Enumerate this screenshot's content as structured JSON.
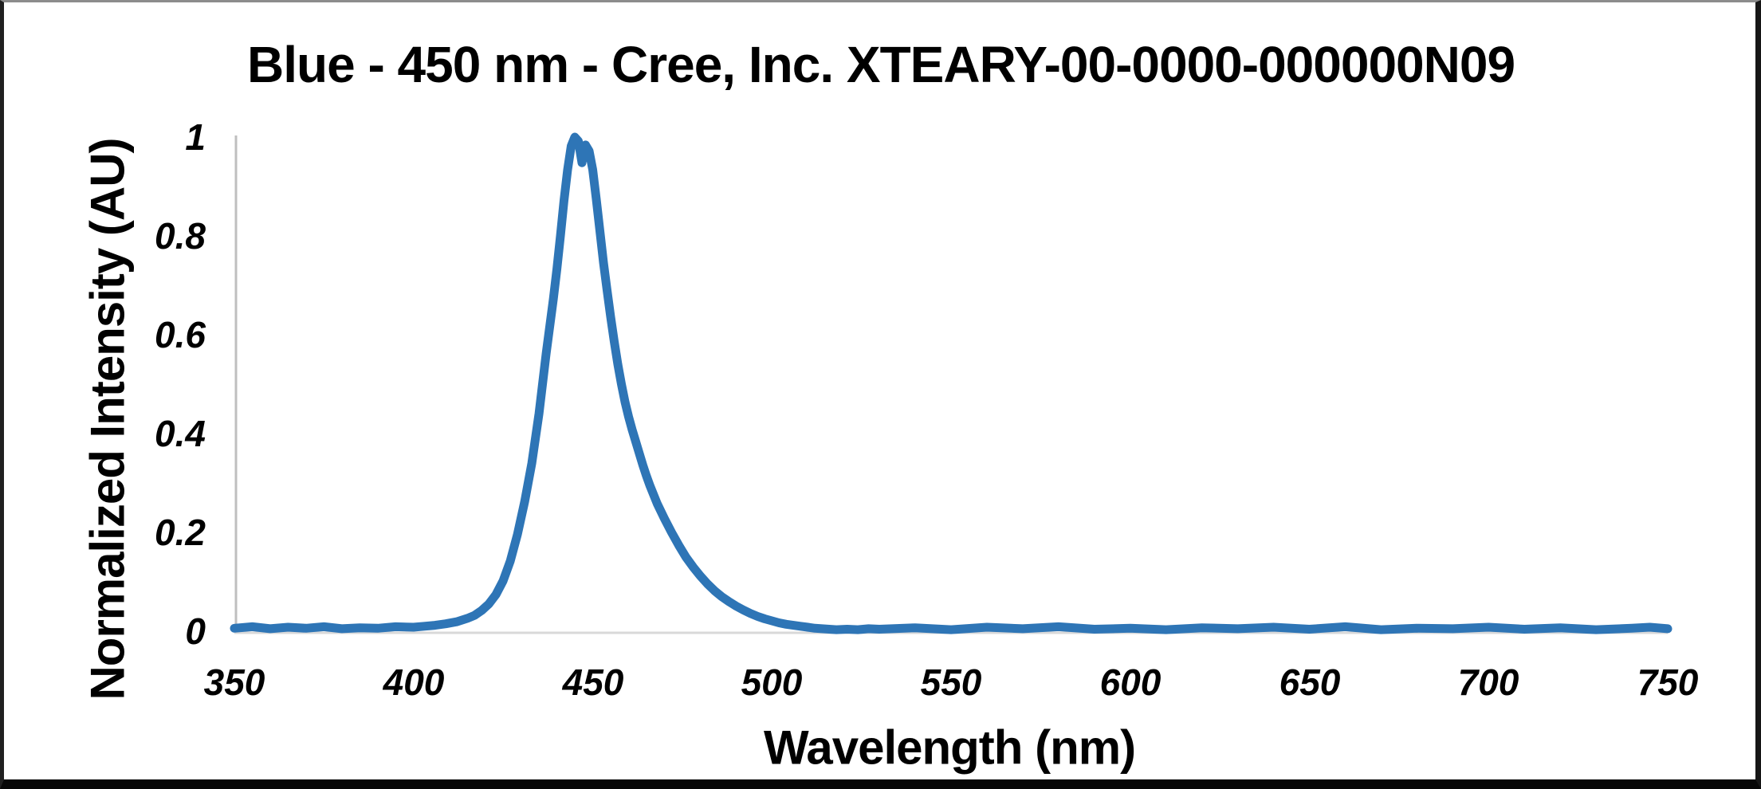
{
  "chart_data": {
    "type": "line",
    "title": "Blue - 450 nm - Cree, Inc. XTEARY-00-0000-000000N09",
    "xlabel": "Wavelength (nm)",
    "ylabel": "Normalized Intensity (AU)",
    "xlim": [
      350,
      750
    ],
    "ylim": [
      0,
      1
    ],
    "xticks": [
      350,
      400,
      450,
      500,
      550,
      600,
      650,
      700,
      750
    ],
    "yticks": [
      0,
      0.2,
      0.4,
      0.6,
      0.8,
      1
    ],
    "ytick_labels": [
      "0",
      "0.2",
      "0.4",
      "0.6",
      "0.8",
      "1"
    ],
    "grid": false,
    "legend": false,
    "peak_wavelength_nm": 445,
    "series": [
      {
        "name": "Blue - 450 nm",
        "color": "#2E75B6",
        "points": [
          [
            350,
            0.006
          ],
          [
            355,
            0.009
          ],
          [
            360,
            0.005
          ],
          [
            365,
            0.008
          ],
          [
            370,
            0.006
          ],
          [
            375,
            0.009
          ],
          [
            380,
            0.005
          ],
          [
            385,
            0.007
          ],
          [
            390,
            0.006
          ],
          [
            395,
            0.009
          ],
          [
            400,
            0.008
          ],
          [
            403,
            0.01
          ],
          [
            406,
            0.012
          ],
          [
            409,
            0.015
          ],
          [
            412,
            0.019
          ],
          [
            415,
            0.026
          ],
          [
            417,
            0.032
          ],
          [
            419,
            0.042
          ],
          [
            421,
            0.055
          ],
          [
            423,
            0.074
          ],
          [
            425,
            0.102
          ],
          [
            427,
            0.142
          ],
          [
            429,
            0.196
          ],
          [
            431,
            0.262
          ],
          [
            433,
            0.34
          ],
          [
            435,
            0.44
          ],
          [
            437,
            0.562
          ],
          [
            439,
            0.672
          ],
          [
            440,
            0.732
          ],
          [
            441,
            0.8
          ],
          [
            442,
            0.872
          ],
          [
            443,
            0.934
          ],
          [
            444,
            0.982
          ],
          [
            445,
            1.0
          ],
          [
            446,
            0.992
          ],
          [
            447,
            0.948
          ],
          [
            448,
            0.984
          ],
          [
            449,
            0.972
          ],
          [
            450,
            0.934
          ],
          [
            451,
            0.874
          ],
          [
            452,
            0.81
          ],
          [
            453,
            0.746
          ],
          [
            454,
            0.69
          ],
          [
            455,
            0.636
          ],
          [
            456,
            0.586
          ],
          [
            457,
            0.54
          ],
          [
            458,
            0.5
          ],
          [
            459,
            0.464
          ],
          [
            460,
            0.434
          ],
          [
            461,
            0.408
          ],
          [
            462,
            0.384
          ],
          [
            463,
            0.36
          ],
          [
            464,
            0.336
          ],
          [
            465,
            0.314
          ],
          [
            466,
            0.294
          ],
          [
            468,
            0.258
          ],
          [
            470,
            0.228
          ],
          [
            472,
            0.2
          ],
          [
            474,
            0.174
          ],
          [
            476,
            0.15
          ],
          [
            478,
            0.13
          ],
          [
            480,
            0.112
          ],
          [
            482,
            0.096
          ],
          [
            484,
            0.082
          ],
          [
            486,
            0.07
          ],
          [
            488,
            0.06
          ],
          [
            490,
            0.051
          ],
          [
            492,
            0.043
          ],
          [
            494,
            0.036
          ],
          [
            496,
            0.03
          ],
          [
            498,
            0.025
          ],
          [
            500,
            0.021
          ],
          [
            502,
            0.017
          ],
          [
            504,
            0.014
          ],
          [
            506,
            0.012
          ],
          [
            508,
            0.01
          ],
          [
            510,
            0.008
          ],
          [
            512,
            0.006
          ],
          [
            514,
            0.005
          ],
          [
            516,
            0.004
          ],
          [
            518,
            0.003
          ],
          [
            521,
            0.004
          ],
          [
            524,
            0.003
          ],
          [
            527,
            0.005
          ],
          [
            530,
            0.004
          ],
          [
            540,
            0.007
          ],
          [
            550,
            0.003
          ],
          [
            560,
            0.008
          ],
          [
            570,
            0.005
          ],
          [
            580,
            0.009
          ],
          [
            590,
            0.004
          ],
          [
            600,
            0.006
          ],
          [
            610,
            0.003
          ],
          [
            620,
            0.007
          ],
          [
            630,
            0.005
          ],
          [
            640,
            0.008
          ],
          [
            650,
            0.004
          ],
          [
            660,
            0.009
          ],
          [
            670,
            0.003
          ],
          [
            680,
            0.006
          ],
          [
            690,
            0.005
          ],
          [
            700,
            0.008
          ],
          [
            710,
            0.004
          ],
          [
            720,
            0.007
          ],
          [
            730,
            0.003
          ],
          [
            740,
            0.006
          ],
          [
            745,
            0.008
          ],
          [
            750,
            0.005
          ]
        ]
      }
    ]
  },
  "colors": {
    "line": "#2E75B6",
    "y_axis_line": "#BFBFBF",
    "x_axis_line": "#D9D9D9",
    "text": "#000000",
    "background": "#FFFFFF"
  }
}
